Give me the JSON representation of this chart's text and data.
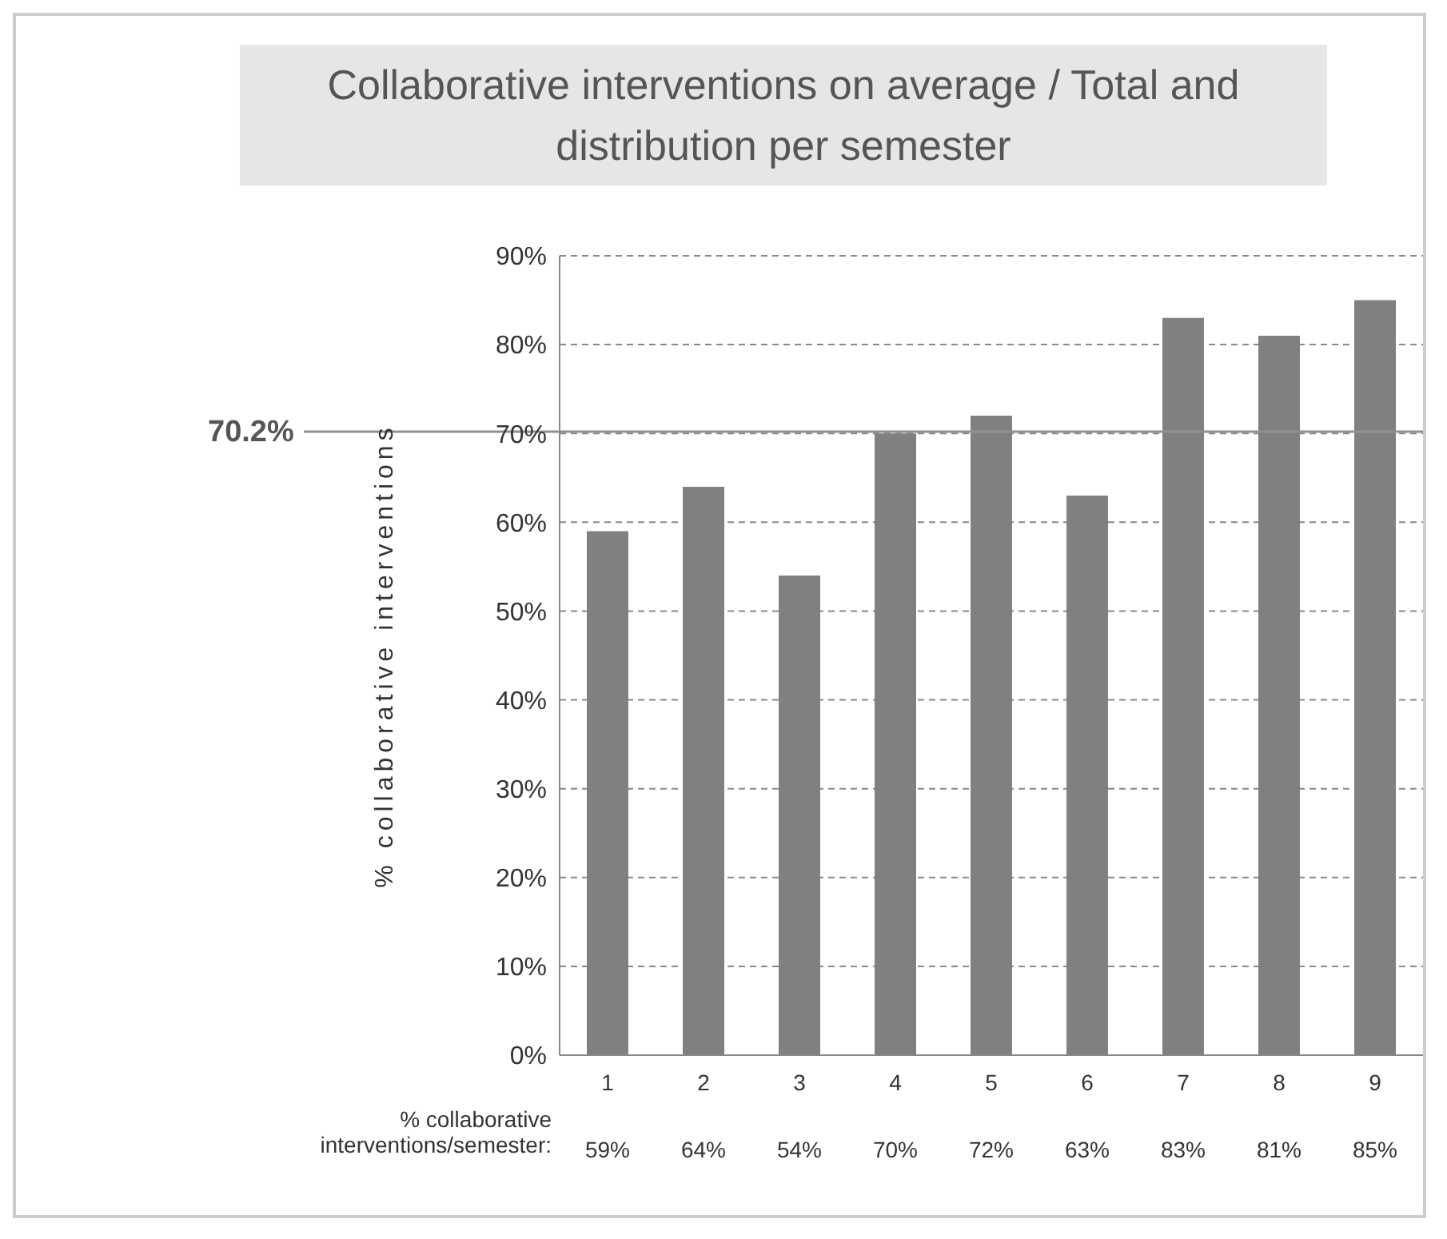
{
  "chart_data": {
    "type": "bar",
    "title": "Collaborative interventions on average / Total and distribution per semester",
    "ylabel": "% collaborative interventions",
    "categories": [
      "1",
      "2",
      "3",
      "4",
      "5",
      "6",
      "7",
      "8",
      "9"
    ],
    "values": [
      59,
      64,
      54,
      70,
      72,
      63,
      83,
      81,
      85
    ],
    "value_labels": [
      "59%",
      "64%",
      "54%",
      "70%",
      "72%",
      "63%",
      "83%",
      "81%",
      "85%"
    ],
    "color": "#808080",
    "ylim": [
      0,
      90
    ],
    "yticks": [
      {
        "value": 0,
        "label": "0%"
      },
      {
        "value": 10,
        "label": "10%"
      },
      {
        "value": 20,
        "label": "20%"
      },
      {
        "value": 30,
        "label": "30%"
      },
      {
        "value": 40,
        "label": "40%"
      },
      {
        "value": 50,
        "label": "50%"
      },
      {
        "value": 60,
        "label": "60%"
      },
      {
        "value": 70,
        "label": "70%"
      },
      {
        "value": 80,
        "label": "80%"
      },
      {
        "value": 90,
        "label": "90%"
      }
    ],
    "ref_lines": [
      {
        "axis": "y",
        "value": 70.2,
        "label": "70.2%",
        "color": "#909090"
      }
    ],
    "annotations": [
      "% collaborative interventions/semester:"
    ],
    "grid": "y"
  }
}
